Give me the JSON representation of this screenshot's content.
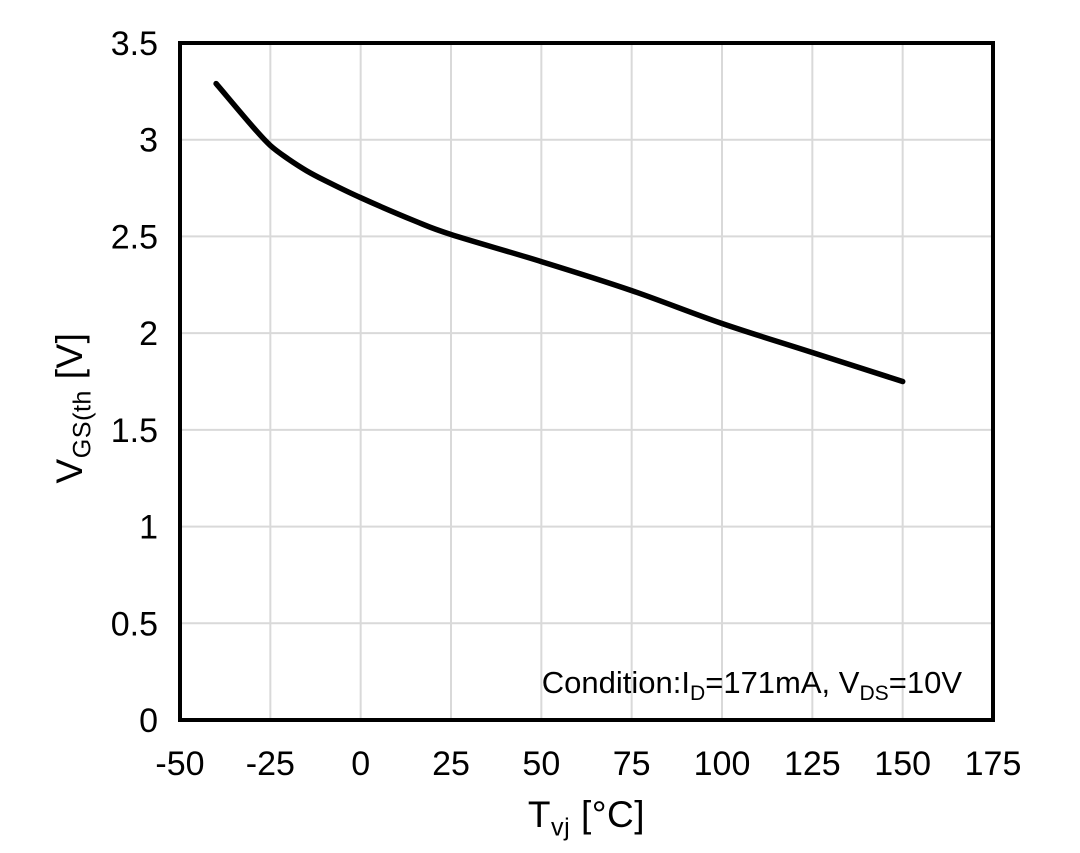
{
  "chart_data": {
    "type": "line",
    "title": "",
    "xlabel": {
      "pre": "T",
      "sub": "vj",
      "post": " [°C]"
    },
    "ylabel": {
      "pre": "V",
      "sub": "GS(th",
      "post": " [V]"
    },
    "condition": {
      "pre": "Condition:I",
      "sub1": "D",
      "mid": "=171mA, V",
      "sub2": "DS",
      "post": "=10V"
    },
    "xlim": [
      -50,
      175
    ],
    "ylim": [
      0,
      3.5
    ],
    "x_tick_values": [
      -50,
      -25,
      0,
      25,
      50,
      75,
      100,
      125,
      150,
      175
    ],
    "x_tick_labels": [
      "-50",
      "-25",
      "0",
      "25",
      "50",
      "75",
      "100",
      "125",
      "150",
      "175"
    ],
    "y_tick_values": [
      0,
      0.5,
      1,
      1.5,
      2,
      2.5,
      3,
      3.5
    ],
    "y_tick_labels": [
      "0",
      "0.5",
      "1",
      "1.5",
      "2",
      "2.5",
      "3",
      "3.5"
    ],
    "grid": true,
    "legend": "none",
    "series": [
      {
        "name": "gate-threshold-voltage-vs-junction-temperature",
        "color": "#000000",
        "x": [
          -40,
          -30,
          -25,
          -20,
          -15,
          -10,
          0,
          15,
          25,
          50,
          75,
          100,
          125,
          150
        ],
        "y": [
          3.29,
          3.07,
          2.97,
          2.9,
          2.84,
          2.79,
          2.7,
          2.58,
          2.51,
          2.37,
          2.22,
          2.05,
          1.9,
          1.75
        ]
      }
    ],
    "colors": {
      "curve": "#000000",
      "grid": "#d9d9d9",
      "axis": "#000000",
      "background": "#ffffff",
      "text": "#000000"
    }
  }
}
